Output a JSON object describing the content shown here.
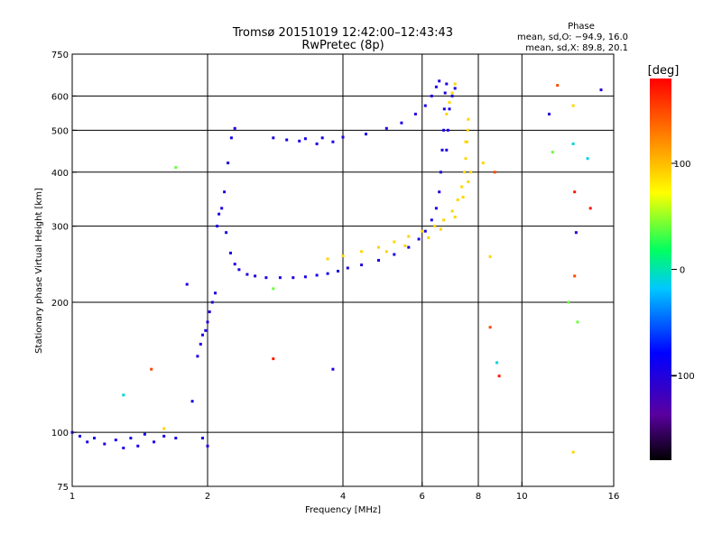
{
  "chart_data": {
    "type": "scatter",
    "title": "Tromsø 20151019 12:42:00–12:43:43",
    "subtitle": "RwPretec (8p)",
    "xlabel": "Frequency [MHz]",
    "ylabel": "Stationary phase Virtual Height [km]",
    "x_scale": "log2",
    "y_scale": "log",
    "xlim": [
      1,
      16
    ],
    "ylim": [
      75,
      750
    ],
    "x_ticks": [
      1,
      2,
      4,
      6,
      8,
      10,
      16
    ],
    "y_ticks": [
      75,
      100,
      200,
      300,
      400,
      500,
      600,
      750
    ],
    "grid_x": [
      2,
      4,
      6,
      8,
      10
    ],
    "grid_y": [
      100,
      200,
      300,
      400,
      500,
      600
    ],
    "grid": true,
    "colorbar": {
      "unit": "[deg]",
      "ticks": [
        100,
        0,
        -100
      ],
      "range": [
        -180,
        180
      ]
    },
    "stats": {
      "heading": "Phase",
      "line_o": "mean, sd,O: −94.9, 16.0",
      "line_x": "mean, sd,X:  89.8, 20.1"
    },
    "series": [
      {
        "mode": "O",
        "phase_deg": -95,
        "points": [
          [
            1.0,
            100
          ],
          [
            1.04,
            98
          ],
          [
            1.08,
            95
          ],
          [
            1.12,
            97
          ],
          [
            1.18,
            94
          ],
          [
            1.25,
            96
          ],
          [
            1.3,
            92
          ],
          [
            1.35,
            97
          ],
          [
            1.4,
            93
          ],
          [
            1.45,
            99
          ],
          [
            1.52,
            95
          ],
          [
            1.6,
            98
          ],
          [
            1.7,
            97
          ],
          [
            1.85,
            118
          ],
          [
            1.95,
            97
          ],
          [
            2.0,
            93
          ],
          [
            1.9,
            150
          ],
          [
            1.93,
            160
          ],
          [
            1.95,
            168
          ],
          [
            1.98,
            172
          ],
          [
            2.0,
            180
          ],
          [
            2.02,
            190
          ],
          [
            2.05,
            200
          ],
          [
            2.08,
            210
          ],
          [
            2.1,
            300
          ],
          [
            2.12,
            320
          ],
          [
            2.15,
            330
          ],
          [
            2.18,
            360
          ],
          [
            2.22,
            420
          ],
          [
            2.26,
            480
          ],
          [
            2.3,
            505
          ],
          [
            2.2,
            290
          ],
          [
            2.25,
            260
          ],
          [
            2.3,
            245
          ],
          [
            2.35,
            238
          ],
          [
            2.45,
            232
          ],
          [
            2.55,
            230
          ],
          [
            2.7,
            228
          ],
          [
            2.9,
            228
          ],
          [
            3.1,
            228
          ],
          [
            3.3,
            229
          ],
          [
            3.5,
            231
          ],
          [
            3.7,
            233
          ],
          [
            3.9,
            236
          ],
          [
            4.1,
            240
          ],
          [
            4.4,
            244
          ],
          [
            4.8,
            250
          ],
          [
            5.2,
            258
          ],
          [
            5.6,
            268
          ],
          [
            5.9,
            280
          ],
          [
            6.1,
            292
          ],
          [
            6.3,
            310
          ],
          [
            6.45,
            330
          ],
          [
            6.55,
            360
          ],
          [
            6.6,
            400
          ],
          [
            6.65,
            450
          ],
          [
            6.7,
            500
          ],
          [
            6.72,
            560
          ],
          [
            6.75,
            610
          ],
          [
            6.8,
            640
          ],
          [
            3.0,
            475
          ],
          [
            3.3,
            478
          ],
          [
            3.6,
            480
          ],
          [
            4.0,
            482
          ],
          [
            4.5,
            490
          ],
          [
            5.0,
            505
          ],
          [
            5.4,
            520
          ],
          [
            5.8,
            545
          ],
          [
            6.1,
            570
          ],
          [
            6.3,
            600
          ],
          [
            6.45,
            630
          ],
          [
            6.55,
            650
          ],
          [
            3.2,
            472
          ],
          [
            3.5,
            465
          ],
          [
            3.8,
            470
          ],
          [
            2.8,
            480
          ],
          [
            7.1,
            625
          ],
          [
            7.0,
            600
          ],
          [
            6.9,
            560
          ],
          [
            6.85,
            500
          ],
          [
            6.8,
            450
          ]
        ]
      },
      {
        "mode": "X",
        "phase_deg": 90,
        "points": [
          [
            3.7,
            252
          ],
          [
            4.0,
            256
          ],
          [
            4.4,
            262
          ],
          [
            4.8,
            268
          ],
          [
            5.2,
            276
          ],
          [
            5.6,
            284
          ],
          [
            6.0,
            292
          ],
          [
            6.4,
            300
          ],
          [
            6.7,
            310
          ],
          [
            7.0,
            325
          ],
          [
            7.2,
            345
          ],
          [
            7.35,
            370
          ],
          [
            7.45,
            400
          ],
          [
            7.5,
            430
          ],
          [
            7.55,
            470
          ],
          [
            7.58,
            500
          ],
          [
            7.6,
            530
          ],
          [
            7.5,
            470
          ],
          [
            6.8,
            545
          ],
          [
            6.9,
            580
          ],
          [
            7.0,
            610
          ],
          [
            7.1,
            640
          ],
          [
            5.0,
            262
          ],
          [
            5.5,
            270
          ],
          [
            6.2,
            282
          ],
          [
            6.6,
            295
          ],
          [
            7.1,
            315
          ],
          [
            7.4,
            350
          ],
          [
            7.6,
            380
          ],
          [
            7.7,
            400
          ]
        ]
      },
      {
        "mode": "scattered",
        "phase_deg": 0,
        "points": [
          [
            1.8,
            220
          ],
          [
            1.7,
            410
          ],
          [
            1.5,
            140
          ],
          [
            1.6,
            102
          ],
          [
            1.3,
            122
          ],
          [
            2.8,
            148
          ],
          [
            3.8,
            140
          ],
          [
            2.8,
            215
          ],
          [
            8.5,
            175
          ],
          [
            8.5,
            255
          ],
          [
            8.8,
            145
          ],
          [
            8.9,
            135
          ],
          [
            11.5,
            545
          ],
          [
            11.7,
            445
          ],
          [
            12.0,
            635
          ],
          [
            13.0,
            570
          ],
          [
            13.0,
            465
          ],
          [
            13.1,
            360
          ],
          [
            13.2,
            290
          ],
          [
            13.3,
            180
          ],
          [
            13.1,
            230
          ],
          [
            13.0,
            90
          ],
          [
            14.0,
            430
          ],
          [
            14.2,
            330
          ],
          [
            15.0,
            620
          ],
          [
            12.7,
            200
          ],
          [
            8.7,
            400
          ],
          [
            8.2,
            420
          ]
        ]
      }
    ]
  }
}
